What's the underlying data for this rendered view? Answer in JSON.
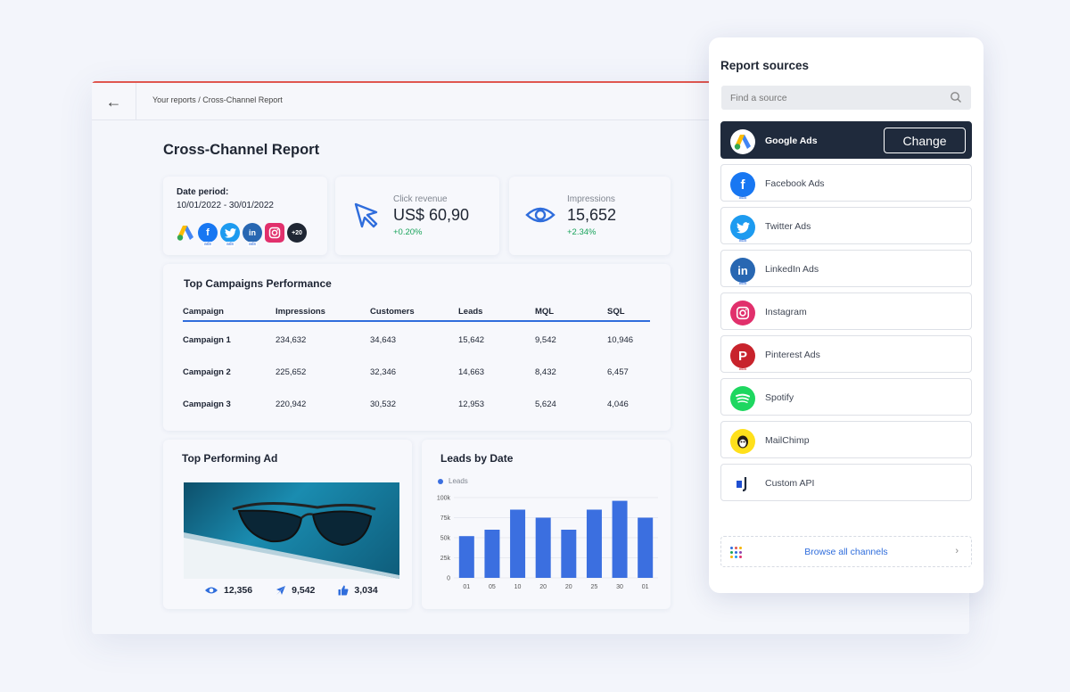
{
  "header": {
    "breadcrumb": "Your reports / Cross-Channel Report",
    "back_icon": "arrow-left-icon"
  },
  "report": {
    "title": "Cross-Channel Report",
    "date_period": {
      "label": "Date period:",
      "value": "10/01/2022 - 30/01/2022",
      "more_badge": "+20"
    },
    "click_revenue": {
      "label": "Click revenue",
      "value": "US$ 60,90",
      "delta": "+0.20%"
    },
    "impressions": {
      "label": "Impressions",
      "value": "15,652",
      "delta": "+2.34%"
    },
    "campaigns": {
      "title": "Top Campaigns Performance",
      "columns": [
        "Campaign",
        "Impressions",
        "Customers",
        "Leads",
        "MQL",
        "SQL"
      ],
      "rows": [
        [
          "Campaign 1",
          "234,632",
          "34,643",
          "15,642",
          "9,542",
          "10,946"
        ],
        [
          "Campaign 2",
          "225,652",
          "32,346",
          "14,663",
          "8,432",
          "6,457"
        ],
        [
          "Campaign 3",
          "220,942",
          "30,532",
          "12,953",
          "5,624",
          "4,046"
        ]
      ]
    },
    "top_ad": {
      "title": "Top Performing Ad",
      "views": "12,356",
      "clicks": "9,542",
      "likes": "3,034"
    },
    "leads": {
      "title": "Leads by Date",
      "legend": "Leads"
    }
  },
  "chart_data": {
    "type": "bar",
    "title": "Leads by Date",
    "categories": [
      "01",
      "05",
      "10",
      "20",
      "20",
      "25",
      "30",
      "01"
    ],
    "series": [
      {
        "name": "Leads",
        "values": [
          52000,
          60000,
          85000,
          75000,
          60000,
          85000,
          96000,
          75000
        ]
      }
    ],
    "yticks": [
      "0",
      "25k",
      "50k",
      "75k",
      "100k"
    ],
    "ylim": [
      0,
      100000
    ],
    "grid": true,
    "color": "#3b6fe0"
  },
  "panel": {
    "title": "Report sources",
    "search_placeholder": "Find a source",
    "change_label": "Change",
    "sources": [
      {
        "name": "Google Ads",
        "selected": true
      },
      {
        "name": "Facebook Ads",
        "sub": "ads"
      },
      {
        "name": "Twitter Ads",
        "sub": "ads"
      },
      {
        "name": "LinkedIn Ads",
        "sub": "ads"
      },
      {
        "name": "Instagram"
      },
      {
        "name": "Pinterest Ads",
        "sub": "ads"
      },
      {
        "name": "Spotify"
      },
      {
        "name": "MailChimp"
      },
      {
        "name": "Custom API"
      }
    ],
    "browse_label": "Browse all channels"
  },
  "colors": {
    "accent": "#2f6ddc",
    "positive": "#18a35a",
    "selected_bg": "#1f2a3c"
  }
}
